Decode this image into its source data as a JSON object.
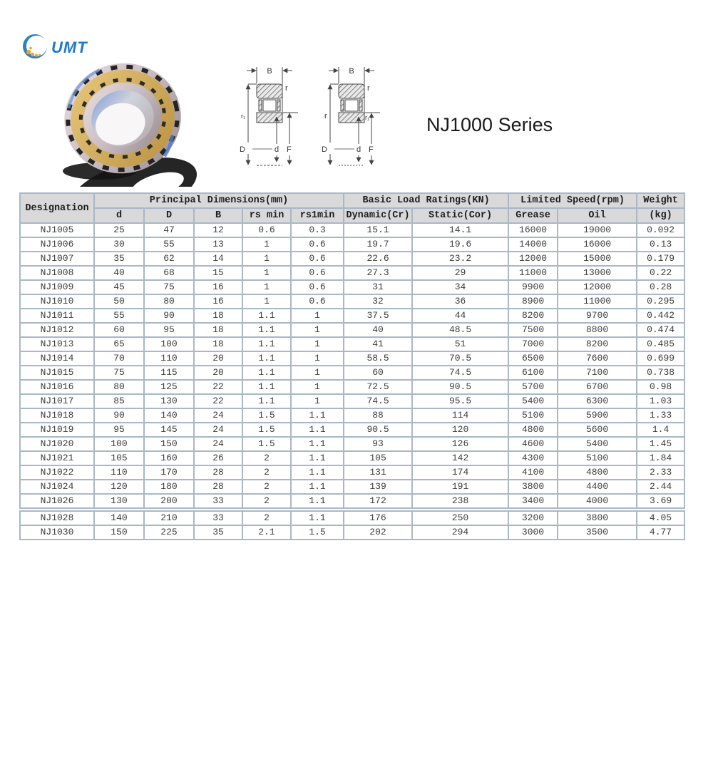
{
  "logo": {
    "text": "UMT"
  },
  "title": "NJ1000 Series",
  "diagram_labels": {
    "B": "B",
    "D": "D",
    "d": "d",
    "F": "F"
  },
  "diagrams": [
    {
      "top_right": "r",
      "left_mid": "r₁",
      "right_mid": ""
    },
    {
      "top_right": "r",
      "left_mid": "r",
      "right_mid": "r₁"
    }
  ],
  "table": {
    "headers": {
      "designation": "Designation",
      "principal": "Principal Dimensions(mm)",
      "basic": "Basic Load Ratings(KN)",
      "speed": "Limited Speed(rpm)",
      "weight": "Weight",
      "sub": [
        "d",
        "D",
        "B",
        "rs min",
        "rs1min",
        "Dynamic(Cr)",
        "Static(Cor)",
        "Grease",
        "Oil",
        "(kg)"
      ]
    },
    "rows": [
      [
        "NJ1005",
        "25",
        "47",
        "12",
        "0.6",
        "0.3",
        "15.1",
        "14.1",
        "16000",
        "19000",
        "0.092"
      ],
      [
        "NJ1006",
        "30",
        "55",
        "13",
        "1",
        "0.6",
        "19.7",
        "19.6",
        "14000",
        "16000",
        "0.13"
      ],
      [
        "NJ1007",
        "35",
        "62",
        "14",
        "1",
        "0.6",
        "22.6",
        "23.2",
        "12000",
        "15000",
        "0.179"
      ],
      [
        "NJ1008",
        "40",
        "68",
        "15",
        "1",
        "0.6",
        "27.3",
        "29",
        "11000",
        "13000",
        "0.22"
      ],
      [
        "NJ1009",
        "45",
        "75",
        "16",
        "1",
        "0.6",
        "31",
        "34",
        "9900",
        "12000",
        "0.28"
      ],
      [
        "NJ1010",
        "50",
        "80",
        "16",
        "1",
        "0.6",
        "32",
        "36",
        "8900",
        "11000",
        "0.295"
      ],
      [
        "NJ1011",
        "55",
        "90",
        "18",
        "1.1",
        "1",
        "37.5",
        "44",
        "8200",
        "9700",
        "0.442"
      ],
      [
        "NJ1012",
        "60",
        "95",
        "18",
        "1.1",
        "1",
        "40",
        "48.5",
        "7500",
        "8800",
        "0.474"
      ],
      [
        "NJ1013",
        "65",
        "100",
        "18",
        "1.1",
        "1",
        "41",
        "51",
        "7000",
        "8200",
        "0.485"
      ],
      [
        "NJ1014",
        "70",
        "110",
        "20",
        "1.1",
        "1",
        "58.5",
        "70.5",
        "6500",
        "7600",
        "0.699"
      ],
      [
        "NJ1015",
        "75",
        "115",
        "20",
        "1.1",
        "1",
        "60",
        "74.5",
        "6100",
        "7100",
        "0.738"
      ],
      [
        "NJ1016",
        "80",
        "125",
        "22",
        "1.1",
        "1",
        "72.5",
        "90.5",
        "5700",
        "6700",
        "0.98"
      ],
      [
        "NJ1017",
        "85",
        "130",
        "22",
        "1.1",
        "1",
        "74.5",
        "95.5",
        "5400",
        "6300",
        "1.03"
      ],
      [
        "NJ1018",
        "90",
        "140",
        "24",
        "1.5",
        "1.1",
        "88",
        "114",
        "5100",
        "5900",
        "1.33"
      ],
      [
        "NJ1019",
        "95",
        "145",
        "24",
        "1.5",
        "1.1",
        "90.5",
        "120",
        "4800",
        "5600",
        "1.4"
      ],
      [
        "NJ1020",
        "100",
        "150",
        "24",
        "1.5",
        "1.1",
        "93",
        "126",
        "4600",
        "5400",
        "1.45"
      ],
      [
        "NJ1021",
        "105",
        "160",
        "26",
        "2",
        "1.1",
        "105",
        "142",
        "4300",
        "5100",
        "1.84"
      ],
      [
        "NJ1022",
        "110",
        "170",
        "28",
        "2",
        "1.1",
        "131",
        "174",
        "4100",
        "4800",
        "2.33"
      ],
      [
        "NJ1024",
        "120",
        "180",
        "28",
        "2",
        "1.1",
        "139",
        "191",
        "3800",
        "4400",
        "2.44"
      ],
      [
        "NJ1026",
        "130",
        "200",
        "33",
        "2",
        "1.1",
        "172",
        "238",
        "3400",
        "4000",
        "3.69"
      ],
      [
        "NJ1028",
        "140",
        "210",
        "33",
        "2",
        "1.1",
        "176",
        "250",
        "3200",
        "3800",
        "4.05"
      ],
      [
        "NJ1030",
        "150",
        "225",
        "35",
        "2.1",
        "1.5",
        "202",
        "294",
        "3000",
        "3500",
        "4.77"
      ]
    ]
  },
  "colors": {
    "table_border": "#aab7c8",
    "header_bg": "#d9d9d9",
    "logo_blue": "#1d79c9",
    "logo_orange": "#f7a01b",
    "bearing_gold": "#d3b369",
    "title_color": "#1a1a1a"
  }
}
